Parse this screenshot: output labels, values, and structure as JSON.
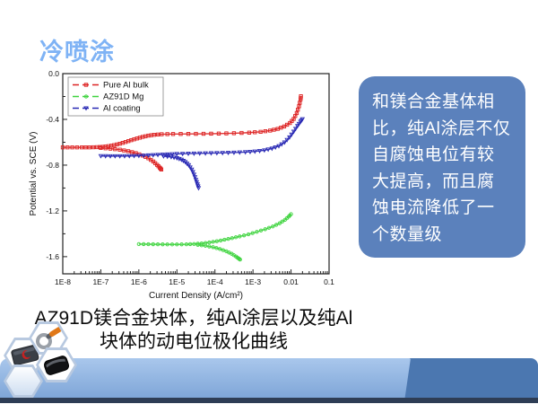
{
  "slide": {
    "title": "冷喷涂",
    "title_color": "#7fb3f5",
    "callout": {
      "bg": "#5b81bc",
      "text_color": "#ffffff",
      "lines": [
        "和镁合金基体相",
        "比，纯Al涂层不仅",
        "自腐蚀电位有较",
        "大提高，而且腐",
        "蚀电流降低了一",
        "个数量级"
      ]
    },
    "caption": {
      "line1": "AZ91D镁合金块体，纯Al涂层以及纯Al",
      "line2": "块体的动电位极化曲线"
    },
    "decor": {
      "band_light_top": "#a9c7ec",
      "band_light_bottom": "#7fa6d8",
      "band_dark": "#4b77b0",
      "band_strip": "#2e3d55",
      "hex_border": "#b8c9e0",
      "icons": [
        "magnifier-3d-icon",
        "red-drive-3d-icon",
        "black-device-3d-icon",
        "empty-hexagon"
      ]
    }
  },
  "chart_data": {
    "type": "line",
    "title": "",
    "xlabel": "Current Density (A/cm²)",
    "ylabel": "Potential vs. SCE (V)",
    "x_scale": "log",
    "x_log_range": [
      -8,
      -1
    ],
    "y_range": [
      -1.75,
      0.0
    ],
    "x_ticks": [
      [
        -8,
        "1E-8"
      ],
      [
        -7,
        "1E-7"
      ],
      [
        -6,
        "1E-6"
      ],
      [
        -5,
        "1E-5"
      ],
      [
        -4,
        "1E-4"
      ],
      [
        -3,
        "1E-3"
      ],
      [
        -2,
        "0.01"
      ],
      [
        -1,
        "0.1"
      ]
    ],
    "y_ticks": [
      [
        0.0,
        "0.0"
      ],
      [
        -0.4,
        "-0.4"
      ],
      [
        -0.8,
        "-0.8"
      ],
      [
        -1.2,
        "-1.2"
      ],
      [
        -1.6,
        "-1.6"
      ]
    ],
    "grid": false,
    "legend_position": "top-left",
    "series": [
      {
        "name": "Pure Al bulk",
        "color": "#dd2222",
        "marker": "square",
        "branches": [
          [
            [
              -8.0,
              -0.645
            ],
            [
              -7.75,
              -0.645
            ],
            [
              -7.5,
              -0.645
            ],
            [
              -7.3,
              -0.645
            ],
            [
              -7.1,
              -0.643
            ],
            [
              -6.95,
              -0.64
            ],
            [
              -6.8,
              -0.634
            ],
            [
              -6.65,
              -0.625
            ],
            [
              -6.5,
              -0.613
            ],
            [
              -6.35,
              -0.598
            ],
            [
              -6.2,
              -0.582
            ],
            [
              -6.05,
              -0.567
            ],
            [
              -5.9,
              -0.553
            ],
            [
              -5.75,
              -0.542
            ],
            [
              -5.6,
              -0.535
            ],
            [
              -5.4,
              -0.53
            ],
            [
              -5.1,
              -0.528
            ],
            [
              -4.7,
              -0.527
            ],
            [
              -4.3,
              -0.526
            ],
            [
              -3.9,
              -0.524
            ],
            [
              -3.5,
              -0.521
            ],
            [
              -3.1,
              -0.516
            ],
            [
              -2.8,
              -0.509
            ],
            [
              -2.55,
              -0.498
            ],
            [
              -2.35,
              -0.483
            ],
            [
              -2.18,
              -0.462
            ],
            [
              -2.03,
              -0.432
            ],
            [
              -1.93,
              -0.396
            ],
            [
              -1.85,
              -0.345
            ],
            [
              -1.79,
              -0.285
            ],
            [
              -1.75,
              -0.225
            ],
            [
              -1.74,
              -0.198
            ]
          ],
          [
            [
              -7.0,
              -0.65
            ],
            [
              -6.75,
              -0.656
            ],
            [
              -6.5,
              -0.665
            ],
            [
              -6.28,
              -0.678
            ],
            [
              -6.08,
              -0.695
            ],
            [
              -5.9,
              -0.716
            ],
            [
              -5.75,
              -0.74
            ],
            [
              -5.62,
              -0.768
            ],
            [
              -5.52,
              -0.798
            ],
            [
              -5.45,
              -0.822
            ],
            [
              -5.41,
              -0.838
            ]
          ]
        ]
      },
      {
        "name": "AZ91D Mg",
        "color": "#3fd43f",
        "marker": "circle",
        "branches": [
          [
            [
              -6.0,
              -1.49
            ],
            [
              -5.75,
              -1.491
            ],
            [
              -5.5,
              -1.492
            ],
            [
              -5.25,
              -1.493
            ],
            [
              -5.0,
              -1.493
            ],
            [
              -4.75,
              -1.492
            ],
            [
              -4.55,
              -1.489
            ],
            [
              -4.35,
              -1.484
            ],
            [
              -4.15,
              -1.476
            ],
            [
              -3.95,
              -1.465
            ],
            [
              -3.75,
              -1.452
            ],
            [
              -3.55,
              -1.438
            ],
            [
              -3.35,
              -1.423
            ],
            [
              -3.12,
              -1.405
            ],
            [
              -2.9,
              -1.383
            ],
            [
              -2.68,
              -1.36
            ],
            [
              -2.48,
              -1.336
            ],
            [
              -2.3,
              -1.308
            ],
            [
              -2.16,
              -1.278
            ],
            [
              -2.06,
              -1.25
            ],
            [
              -2.0,
              -1.228
            ]
          ],
          [
            [
              -4.45,
              -1.497
            ],
            [
              -4.25,
              -1.505
            ],
            [
              -4.05,
              -1.517
            ],
            [
              -3.87,
              -1.533
            ],
            [
              -3.7,
              -1.553
            ],
            [
              -3.56,
              -1.575
            ],
            [
              -3.45,
              -1.598
            ],
            [
              -3.38,
              -1.615
            ],
            [
              -3.34,
              -1.625
            ]
          ]
        ]
      },
      {
        "name": "Al coating",
        "color": "#2828b4",
        "marker": "triangle-down",
        "branches": [
          [
            [
              -7.0,
              -0.72
            ],
            [
              -6.75,
              -0.721
            ],
            [
              -6.5,
              -0.721
            ],
            [
              -6.25,
              -0.72
            ],
            [
              -6.0,
              -0.718
            ],
            [
              -5.75,
              -0.714
            ],
            [
              -5.5,
              -0.71
            ],
            [
              -5.25,
              -0.706
            ],
            [
              -5.0,
              -0.702
            ],
            [
              -4.7,
              -0.699
            ],
            [
              -4.4,
              -0.697
            ],
            [
              -4.1,
              -0.695
            ],
            [
              -3.8,
              -0.693
            ],
            [
              -3.5,
              -0.69
            ],
            [
              -3.2,
              -0.686
            ],
            [
              -2.95,
              -0.68
            ],
            [
              -2.7,
              -0.67
            ],
            [
              -2.5,
              -0.655
            ],
            [
              -2.32,
              -0.633
            ],
            [
              -2.17,
              -0.601
            ],
            [
              -2.04,
              -0.557
            ],
            [
              -1.93,
              -0.507
            ],
            [
              -1.83,
              -0.458
            ],
            [
              -1.75,
              -0.42
            ],
            [
              -1.7,
              -0.398
            ]
          ],
          [
            [
              -5.35,
              -0.722
            ],
            [
              -5.15,
              -0.728
            ],
            [
              -5.0,
              -0.738
            ],
            [
              -4.88,
              -0.752
            ],
            [
              -4.78,
              -0.772
            ],
            [
              -4.69,
              -0.8
            ],
            [
              -4.61,
              -0.838
            ],
            [
              -4.55,
              -0.882
            ],
            [
              -4.5,
              -0.928
            ],
            [
              -4.46,
              -0.968
            ],
            [
              -4.43,
              -1.0
            ]
          ]
        ]
      }
    ]
  }
}
